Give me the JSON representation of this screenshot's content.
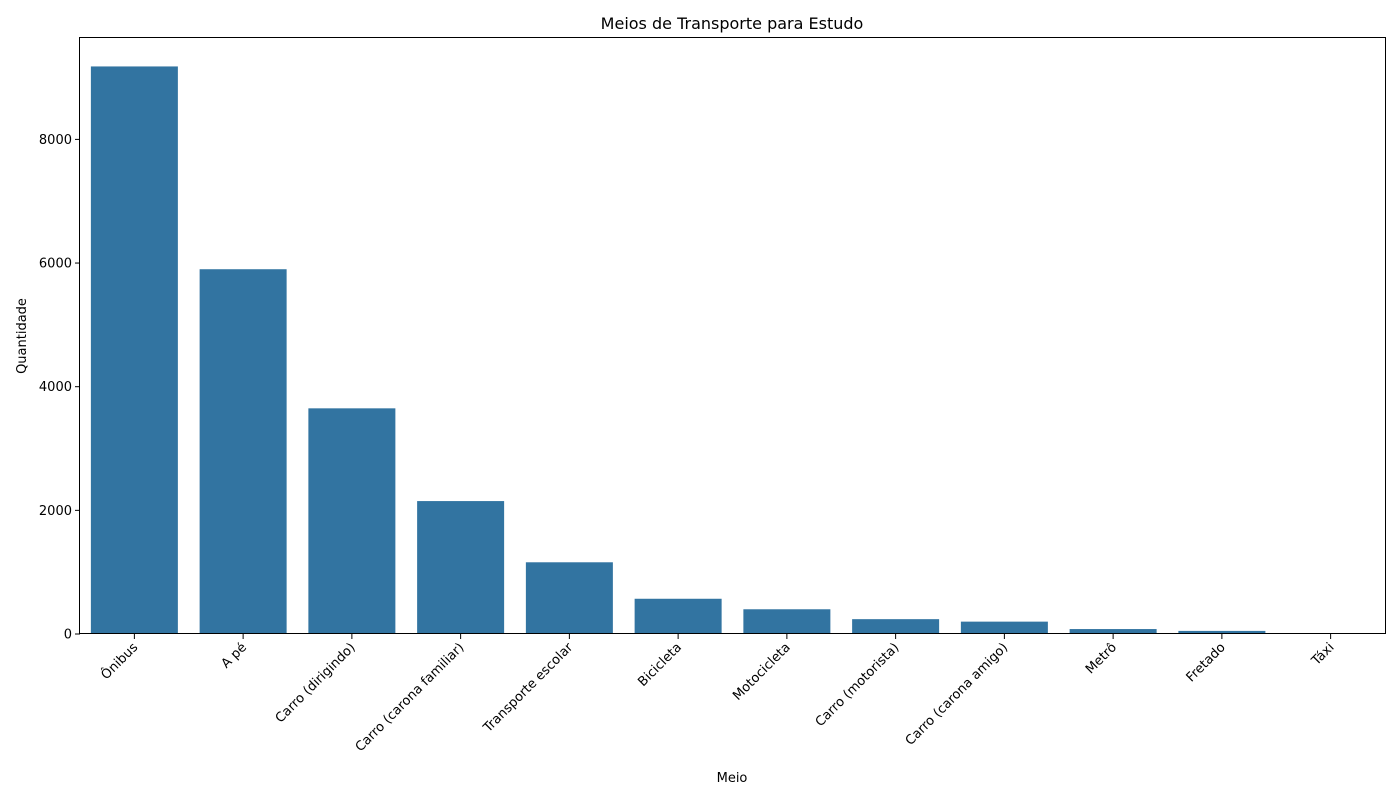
{
  "chart_data": {
    "type": "bar",
    "title": "Meios de Transporte para Estudo",
    "xlabel": "Meio",
    "ylabel": "Quantidade",
    "categories": [
      "Ônibus",
      "A pé",
      "Carro (dirigindo)",
      "Carro (carona familiar)",
      "Transporte escolar",
      "Bicicleta",
      "Motocicleta",
      "Carro (motorista)",
      "Carro (carona amigo)",
      "Metrô",
      "Fretado",
      "Táxi"
    ],
    "values": [
      9180,
      5900,
      3650,
      2150,
      1160,
      570,
      400,
      240,
      200,
      80,
      50,
      15
    ],
    "ylim": [
      0,
      9640
    ],
    "yticks": [
      0,
      2000,
      4000,
      6000,
      8000
    ],
    "bar_color": "#3274a1",
    "grid": false,
    "xtick_rotation": 45
  }
}
